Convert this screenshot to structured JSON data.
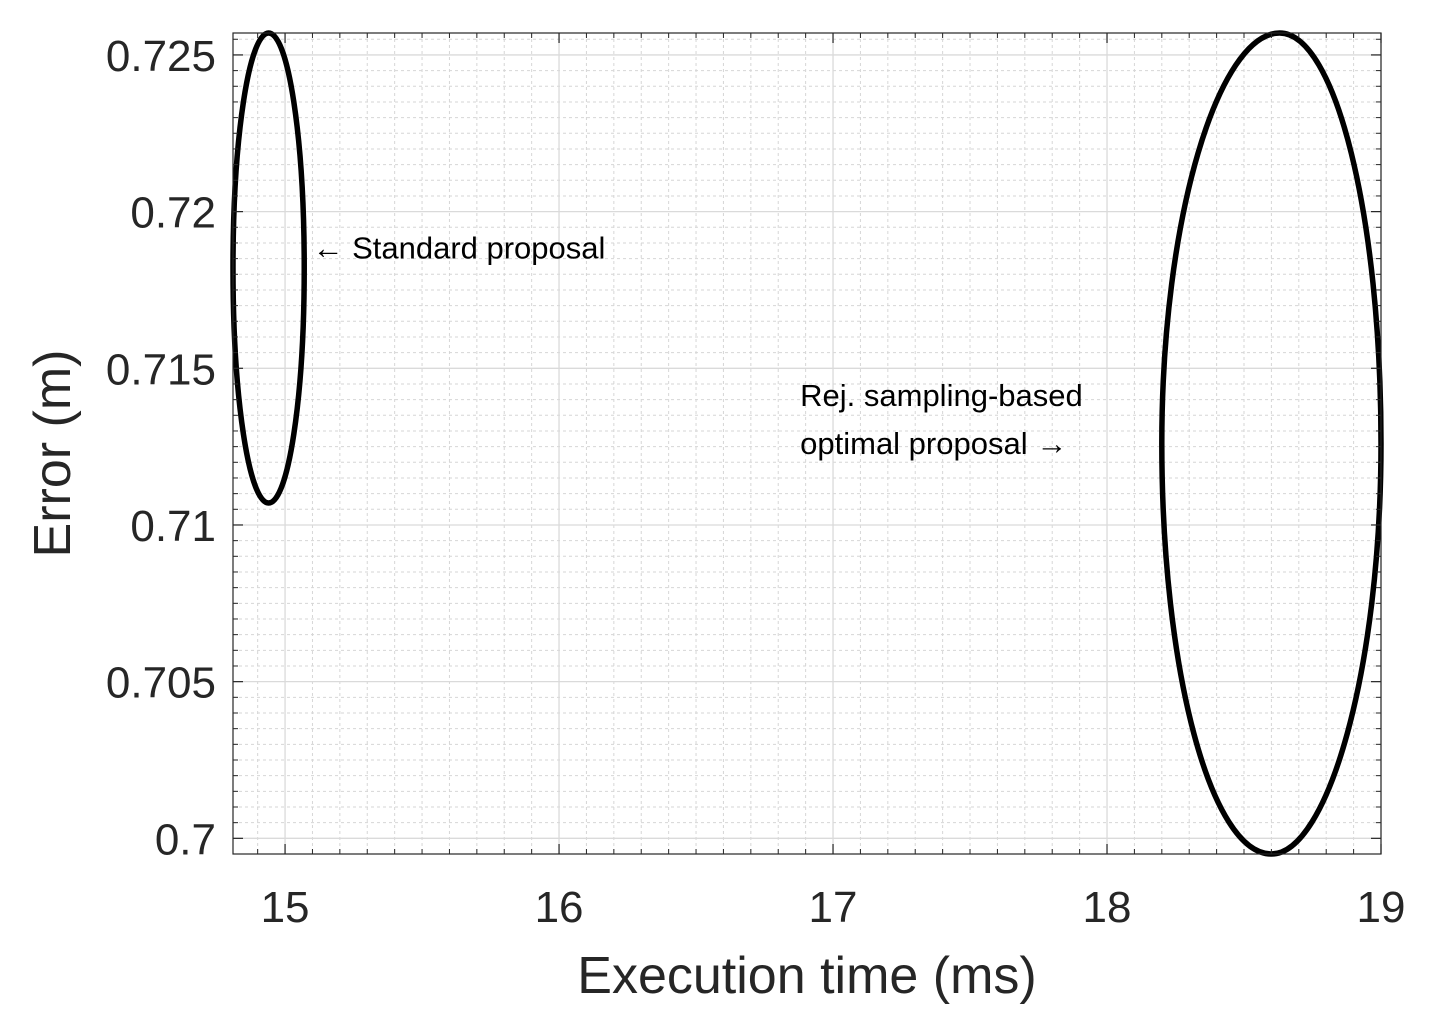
{
  "chart_data": {
    "type": "scatter",
    "title": "",
    "xlabel": "Execution time (ms)",
    "ylabel": "Error (m)",
    "xlim": [
      14.81,
      19.0
    ],
    "ylim": [
      0.6995,
      0.7257
    ],
    "grid": true,
    "minor_grid": true,
    "x_ticks": [
      15,
      16,
      17,
      18,
      19
    ],
    "x_tick_labels": [
      "15",
      "16",
      "17",
      "18",
      "19"
    ],
    "y_ticks": [
      0.7,
      0.705,
      0.71,
      0.715,
      0.72,
      0.725
    ],
    "y_tick_labels": [
      "0.7",
      "0.705",
      "0.71",
      "0.715",
      "0.72",
      "0.725"
    ],
    "series": [
      {
        "shape": "ellipse",
        "x_range": [
          14.81,
          15.07
        ],
        "y_range": [
          0.7107,
          0.7257
        ],
        "x_at_top": 14.94,
        "x_at_bottom": 14.94
      },
      {
        "shape": "ellipse",
        "x_range": [
          18.2,
          19.0
        ],
        "y_range": [
          0.6995,
          0.7257
        ],
        "x_at_top": 18.63,
        "x_at_bottom": 18.6
      }
    ],
    "annotations": [
      {
        "lines": [
          "← Standard proposal"
        ],
        "x": 15.1,
        "y": 0.7185,
        "align": "left"
      },
      {
        "lines": [
          "Rej. sampling-based",
          "optimal proposal →"
        ],
        "x": 16.88,
        "y": 0.7138,
        "align": "left"
      }
    ]
  }
}
